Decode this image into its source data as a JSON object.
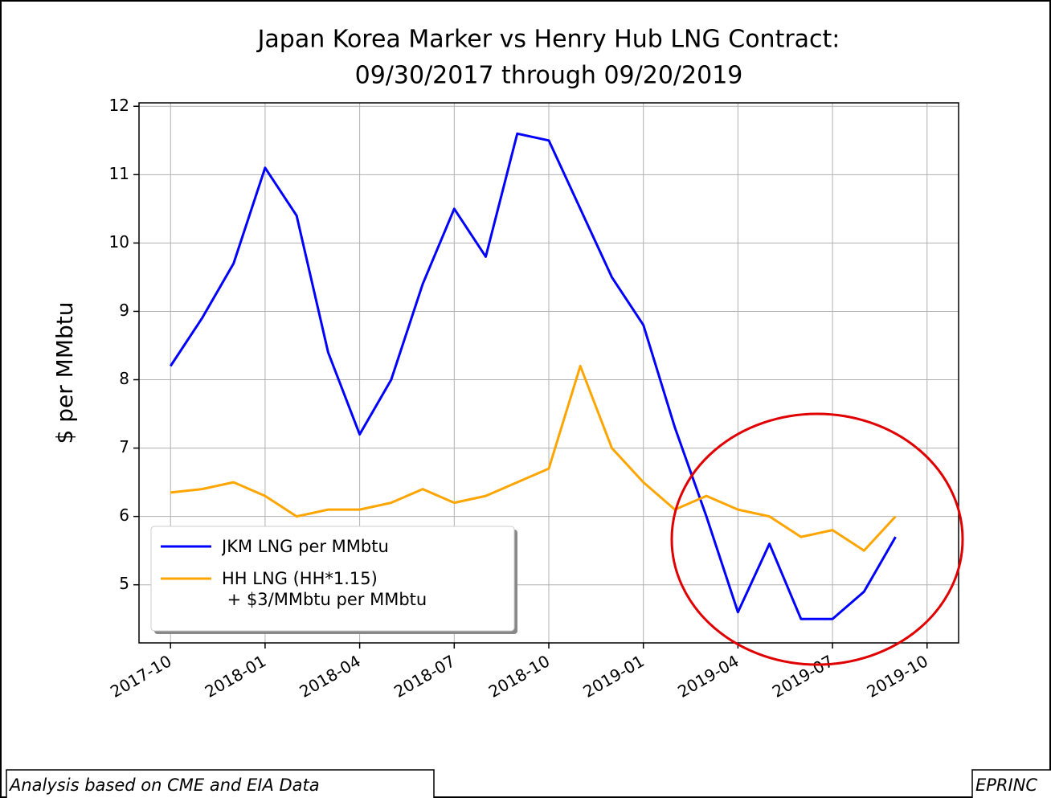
{
  "chart_data": {
    "type": "line",
    "title": "Japan Korea Marker vs Henry Hub LNG Contract:",
    "subtitle": "09/30/2017 through 09/20/2019",
    "ylabel": "$ per MMbtu",
    "x": [
      "2017-10",
      "2017-11",
      "2017-12",
      "2018-01",
      "2018-02",
      "2018-03",
      "2018-04",
      "2018-05",
      "2018-06",
      "2018-07",
      "2018-08",
      "2018-09",
      "2018-10",
      "2018-11",
      "2018-12",
      "2019-01",
      "2019-02",
      "2019-03",
      "2019-04",
      "2019-05",
      "2019-06",
      "2019-07",
      "2019-08",
      "2019-09"
    ],
    "series": [
      {
        "name": "JKM LNG per MMbtu",
        "color": "#0000ff",
        "values": [
          8.2,
          8.9,
          9.7,
          11.1,
          10.4,
          8.4,
          7.2,
          8.0,
          9.4,
          10.5,
          9.8,
          11.6,
          11.5,
          10.5,
          9.5,
          8.8,
          7.3,
          6.0,
          4.6,
          5.6,
          4.5,
          4.5,
          4.9,
          5.7
        ]
      },
      {
        "name": "HH LNG (HH*1.15)\n + $3/MMbtu per MMbtu",
        "color": "#ffa500",
        "values": [
          6.35,
          6.4,
          6.5,
          6.3,
          6.0,
          6.1,
          6.1,
          6.2,
          6.4,
          6.2,
          6.3,
          6.5,
          6.7,
          8.2,
          7.0,
          6.5,
          6.1,
          6.3,
          6.1,
          6.0,
          5.7,
          5.8,
          5.5,
          6.0
        ]
      }
    ],
    "xlim": [
      "2017-09",
      "2019-11"
    ],
    "xticks": [
      "2017-10",
      "2018-01",
      "2018-04",
      "2018-07",
      "2018-10",
      "2019-01",
      "2019-04",
      "2019-07",
      "2019-10"
    ],
    "ylim": [
      4.15,
      12.05
    ],
    "yticks": [
      5,
      6,
      7,
      8,
      9,
      10,
      11,
      12
    ],
    "grid": true,
    "legend": "lower left"
  },
  "footer": {
    "left": "Analysis based on CME and EIA Data",
    "right": "EPRINC"
  }
}
